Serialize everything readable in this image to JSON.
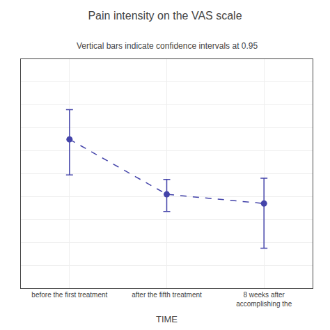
{
  "chart_data": {
    "type": "line",
    "title": "Pain intensity on the VAS scale",
    "subtitle": "Vertical bars indicate confidence intervals at 0.95",
    "xlabel": "TIME",
    "categories": [
      "before the first treatment",
      "after the fifth treatment",
      "8 weeks after\naccomplishing the"
    ],
    "values": [
      6.5,
      4.1,
      3.7
    ],
    "error_upper": [
      1.3,
      0.65,
      1.1
    ],
    "error_lower": [
      1.55,
      0.75,
      1.95
    ],
    "color": "#4444aa",
    "marker": "circle",
    "line_style": "dashed",
    "ylim": [
      0,
      10
    ],
    "yticks": [
      0,
      1,
      2,
      3,
      4,
      5,
      6,
      7,
      8,
      9,
      10
    ],
    "grid": true,
    "tick_labels": "x"
  }
}
